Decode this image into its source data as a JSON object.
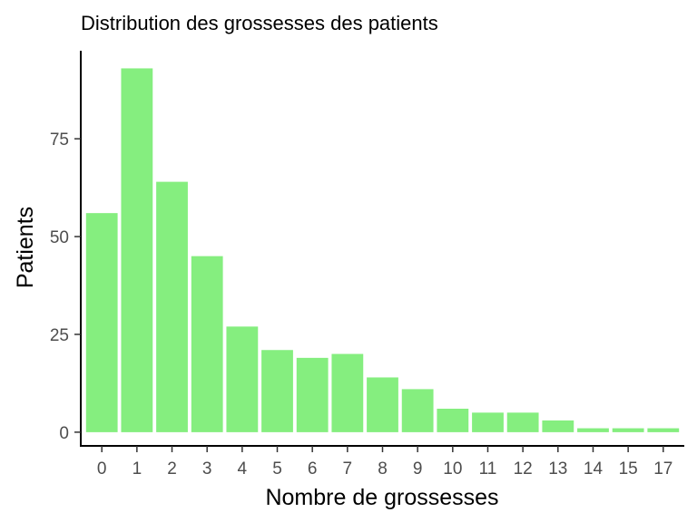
{
  "chart_data": {
    "type": "bar",
    "title": "Distribution des grossesses des patients",
    "xlabel": "Nombre de grossesses",
    "ylabel": "Patients",
    "categories": [
      "0",
      "1",
      "2",
      "3",
      "4",
      "5",
      "6",
      "7",
      "8",
      "9",
      "10",
      "11",
      "12",
      "13",
      "14",
      "15",
      "17"
    ],
    "values": [
      56,
      93,
      64,
      45,
      27,
      21,
      19,
      20,
      14,
      11,
      6,
      5,
      5,
      3,
      1,
      1,
      1
    ],
    "yticks": [
      0,
      25,
      50,
      75
    ],
    "ylim": [
      -3.5,
      97.5
    ],
    "grid": false,
    "bar_color": "#85ee7f"
  }
}
